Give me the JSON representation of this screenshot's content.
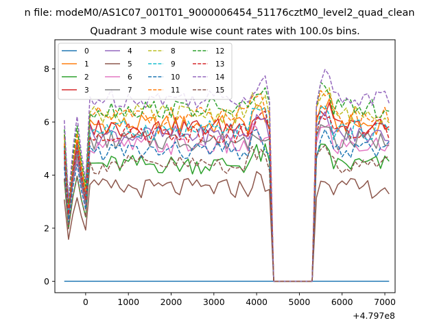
{
  "chart_data": {
    "type": "line",
    "suptitle": "n file: modeM0/AS1C07_001T01_9000006454_51176cztM0_level2_quad_clean",
    "title": "Quadrant 3 module wise count rates with 100.0s bins.",
    "xlabel": "",
    "ylabel": "",
    "x_offset_label": "+4.797e8",
    "xlim": [
      -720,
      7240
    ],
    "ylim": [
      -0.43,
      9.1
    ],
    "xticks": [
      0,
      1000,
      2000,
      3000,
      4000,
      5000,
      6000,
      7000
    ],
    "yticks": [
      0,
      2,
      4,
      6,
      8
    ],
    "grid": false,
    "legend_position": "top-left",
    "legend_columns": 4,
    "gap": {
      "start": 4350,
      "end": 5360
    },
    "x": {
      "start": -500,
      "end": 7100,
      "step": 100
    },
    "series": [
      {
        "name": "0",
        "color": "#1f77b4",
        "dash": "solid",
        "base": 0.0
      },
      {
        "name": "1",
        "color": "#ff7f0e",
        "dash": "solid",
        "base": 5.9
      },
      {
        "name": "2",
        "color": "#2ca02c",
        "dash": "solid",
        "base": 4.4
      },
      {
        "name": "3",
        "color": "#d62728",
        "dash": "solid",
        "base": 5.8
      },
      {
        "name": "4",
        "color": "#9467bd",
        "dash": "solid",
        "base": 5.5
      },
      {
        "name": "5",
        "color": "#8c564b",
        "dash": "solid",
        "base": 3.5
      },
      {
        "name": "6",
        "color": "#e377c2",
        "dash": "solid",
        "base": 5.1
      },
      {
        "name": "7",
        "color": "#7f7f7f",
        "dash": "solid",
        "base": 5.3
      },
      {
        "name": "8",
        "color": "#bcbd22",
        "dash": "dashed",
        "base": 6.3
      },
      {
        "name": "9",
        "color": "#17becf",
        "dash": "dashed",
        "base": 5.7
      },
      {
        "name": "10",
        "color": "#1f77b4",
        "dash": "dashed",
        "base": 4.9
      },
      {
        "name": "11",
        "color": "#ff7f0e",
        "dash": "dashed",
        "base": 6.2
      },
      {
        "name": "12",
        "color": "#2ca02c",
        "dash": "dashed",
        "base": 6.5
      },
      {
        "name": "13",
        "color": "#d62728",
        "dash": "dashed",
        "base": 5.6
      },
      {
        "name": "14",
        "color": "#9467bd",
        "dash": "dashed",
        "base": 6.9
      },
      {
        "name": "15",
        "color": "#8c564b",
        "dash": "dashed",
        "base": 4.4
      }
    ]
  }
}
